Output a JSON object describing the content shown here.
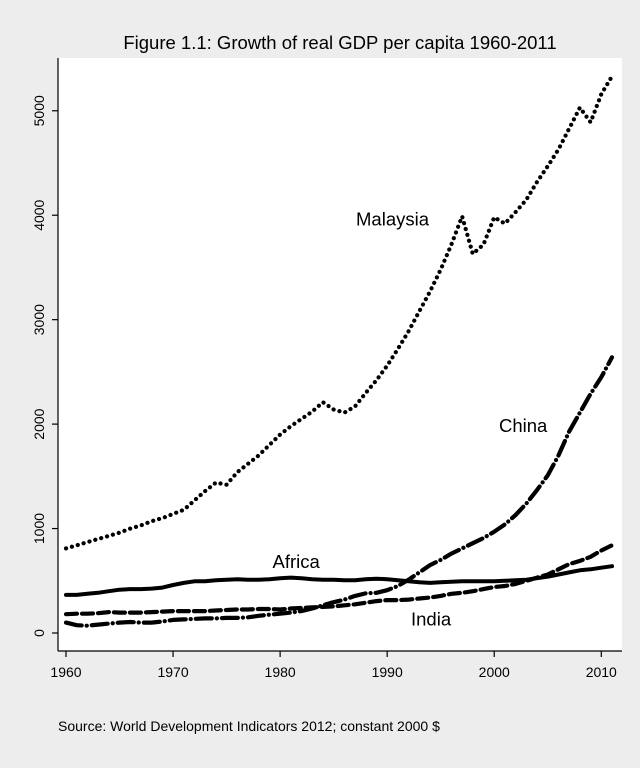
{
  "chart_data": {
    "type": "line",
    "title": "Figure 1.1: Growth of real GDP per capita 1960-2011",
    "xlabel": "",
    "ylabel": "",
    "xlim": [
      1960,
      2011
    ],
    "ylim": [
      0,
      5400
    ],
    "x_ticks": [
      1960,
      1970,
      1980,
      1990,
      2000,
      2010
    ],
    "y_ticks": [
      0,
      1000,
      2000,
      3000,
      4000,
      5000
    ],
    "grid": false,
    "colors": {
      "background": "#ededed",
      "plot_background": "#ffffff",
      "line": "#000000"
    },
    "series": [
      {
        "name": "Malaysia",
        "dash": "dotted",
        "x": [
          1960,
          1961,
          1962,
          1963,
          1964,
          1965,
          1966,
          1967,
          1968,
          1969,
          1970,
          1971,
          1972,
          1973,
          1974,
          1975,
          1976,
          1977,
          1978,
          1979,
          1980,
          1981,
          1982,
          1983,
          1984,
          1985,
          1986,
          1987,
          1988,
          1989,
          1990,
          1991,
          1992,
          1993,
          1994,
          1995,
          1996,
          1997,
          1998,
          1999,
          2000,
          2001,
          2002,
          2003,
          2004,
          2005,
          2006,
          2007,
          2008,
          2009,
          2010,
          2011
        ],
        "values": [
          810,
          840,
          870,
          900,
          930,
          960,
          1000,
          1030,
          1070,
          1100,
          1140,
          1180,
          1270,
          1360,
          1440,
          1420,
          1540,
          1620,
          1700,
          1800,
          1900,
          1980,
          2050,
          2120,
          2210,
          2140,
          2110,
          2170,
          2300,
          2420,
          2560,
          2720,
          2890,
          3080,
          3270,
          3480,
          3720,
          3990,
          3630,
          3720,
          3980,
          3920,
          4030,
          4150,
          4320,
          4470,
          4630,
          4830,
          5030,
          4890,
          5160,
          5330
        ]
      },
      {
        "name": "China",
        "dash": "longdash-dot",
        "x": [
          1960,
          1961,
          1962,
          1963,
          1964,
          1965,
          1966,
          1967,
          1968,
          1969,
          1970,
          1971,
          1972,
          1973,
          1974,
          1975,
          1976,
          1977,
          1978,
          1979,
          1980,
          1981,
          1982,
          1983,
          1984,
          1985,
          1986,
          1987,
          1988,
          1989,
          1990,
          1991,
          1992,
          1993,
          1994,
          1995,
          1996,
          1997,
          1998,
          1999,
          2000,
          2001,
          2002,
          2003,
          2004,
          2005,
          2006,
          2007,
          2008,
          2009,
          2010,
          2011
        ],
        "values": [
          100,
          75,
          70,
          80,
          90,
          100,
          105,
          100,
          100,
          110,
          125,
          130,
          135,
          140,
          140,
          145,
          145,
          150,
          165,
          175,
          185,
          195,
          210,
          235,
          265,
          295,
          320,
          355,
          380,
          385,
          410,
          450,
          510,
          580,
          650,
          700,
          760,
          810,
          860,
          910,
          970,
          1040,
          1130,
          1240,
          1370,
          1510,
          1700,
          1930,
          2110,
          2290,
          2450,
          2640
        ]
      },
      {
        "name": "Africa",
        "dash": "solid",
        "x": [
          1960,
          1961,
          1962,
          1963,
          1964,
          1965,
          1966,
          1967,
          1968,
          1969,
          1970,
          1971,
          1972,
          1973,
          1974,
          1975,
          1976,
          1977,
          1978,
          1979,
          1980,
          1981,
          1982,
          1983,
          1984,
          1985,
          1986,
          1987,
          1988,
          1989,
          1990,
          1991,
          1992,
          1993,
          1994,
          1995,
          1996,
          1997,
          1998,
          1999,
          2000,
          2001,
          2002,
          2003,
          2004,
          2005,
          2006,
          2007,
          2008,
          2009,
          2010,
          2011
        ],
        "values": [
          365,
          365,
          375,
          385,
          400,
          415,
          420,
          420,
          425,
          435,
          460,
          480,
          495,
          495,
          505,
          510,
          515,
          510,
          510,
          515,
          525,
          530,
          525,
          515,
          510,
          510,
          505,
          505,
          515,
          520,
          515,
          505,
          495,
          485,
          480,
          485,
          490,
          495,
          495,
          495,
          495,
          500,
          505,
          510,
          525,
          540,
          560,
          580,
          600,
          610,
          625,
          640
        ]
      },
      {
        "name": "India",
        "dash": "dashed",
        "x": [
          1960,
          1961,
          1962,
          1963,
          1964,
          1965,
          1966,
          1967,
          1968,
          1969,
          1970,
          1971,
          1972,
          1973,
          1974,
          1975,
          1976,
          1977,
          1978,
          1979,
          1980,
          1981,
          1982,
          1983,
          1984,
          1985,
          1986,
          1987,
          1988,
          1989,
          1990,
          1991,
          1992,
          1993,
          1994,
          1995,
          1996,
          1997,
          1998,
          1999,
          2000,
          2001,
          2002,
          2003,
          2004,
          2005,
          2006,
          2007,
          2008,
          2009,
          2010,
          2011
        ],
        "values": [
          180,
          185,
          185,
          190,
          200,
          195,
          195,
          195,
          200,
          205,
          210,
          210,
          210,
          210,
          215,
          220,
          225,
          225,
          230,
          230,
          225,
          235,
          240,
          245,
          250,
          255,
          265,
          275,
          290,
          305,
          315,
          315,
          320,
          330,
          340,
          355,
          375,
          385,
          400,
          420,
          440,
          450,
          470,
          500,
          530,
          560,
          610,
          660,
          690,
          730,
          790,
          840
        ]
      }
    ],
    "annotations": [
      {
        "text": "Malaysia",
        "series": "Malaysia",
        "x": 1990.5,
        "y": 3960
      },
      {
        "text": "China",
        "series": "China",
        "x": 2002.7,
        "y": 1980
      },
      {
        "text": "Africa",
        "series": "Africa",
        "x": 1981.5,
        "y": 680
      },
      {
        "text": "India",
        "series": "India",
        "x": 1994.1,
        "y": 130
      }
    ],
    "source": "Source: World Development Indicators 2012; constant 2000 $"
  }
}
